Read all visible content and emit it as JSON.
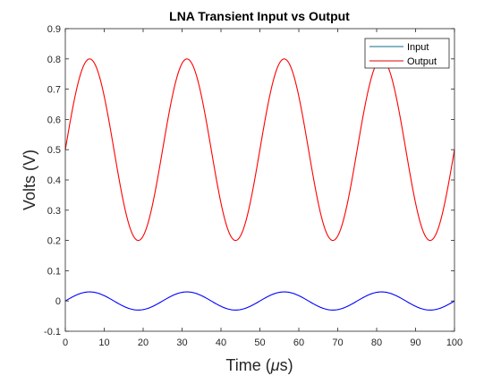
{
  "chart_data": {
    "type": "line",
    "title": "LNA Transient Input vs Output",
    "xlabel": "Time (",
    "xlabel_mu": "μ",
    "xlabel_tail": "s)",
    "ylabel": "Volts (V)",
    "xlim": [
      0,
      100
    ],
    "ylim": [
      -0.1,
      0.9
    ],
    "xticks": [
      0,
      10,
      20,
      30,
      40,
      50,
      60,
      70,
      80,
      90,
      100
    ],
    "yticks": [
      -0.1,
      0,
      0.1,
      0.2,
      0.3,
      0.4,
      0.5,
      0.6,
      0.7,
      0.8,
      0.9
    ],
    "xtick_labels": [
      "0",
      "10",
      "20",
      "30",
      "40",
      "50",
      "60",
      "70",
      "80",
      "90",
      "100"
    ],
    "ytick_labels": [
      "-0.1",
      "0",
      "0.1",
      "0.2",
      "0.3",
      "0.4",
      "0.5",
      "0.6",
      "0.7",
      "0.8",
      "0.9"
    ],
    "grid": false,
    "legend_position": "top-right",
    "period": 25,
    "series": [
      {
        "name": "Input",
        "legend_color": "#0b6e8a",
        "color": "#0000ff",
        "offset": 0.0,
        "amplitude": 0.03,
        "x": [
          0,
          6.25,
          18.75,
          31.25,
          43.75,
          56.25,
          68.75,
          81.25,
          93.75,
          100
        ],
        "y": [
          0.0,
          0.03,
          -0.03,
          0.03,
          -0.03,
          0.03,
          -0.03,
          0.03,
          -0.03,
          0.0
        ]
      },
      {
        "name": "Output",
        "legend_color": "#e00000",
        "color": "#ff0000",
        "offset": 0.5,
        "amplitude": 0.3,
        "x": [
          0,
          6.25,
          18.75,
          31.25,
          43.75,
          56.25,
          68.75,
          81.25,
          93.75,
          100
        ],
        "y": [
          0.47,
          0.8,
          0.2,
          0.8,
          0.2,
          0.8,
          0.2,
          0.8,
          0.2,
          0.45
        ]
      }
    ]
  }
}
